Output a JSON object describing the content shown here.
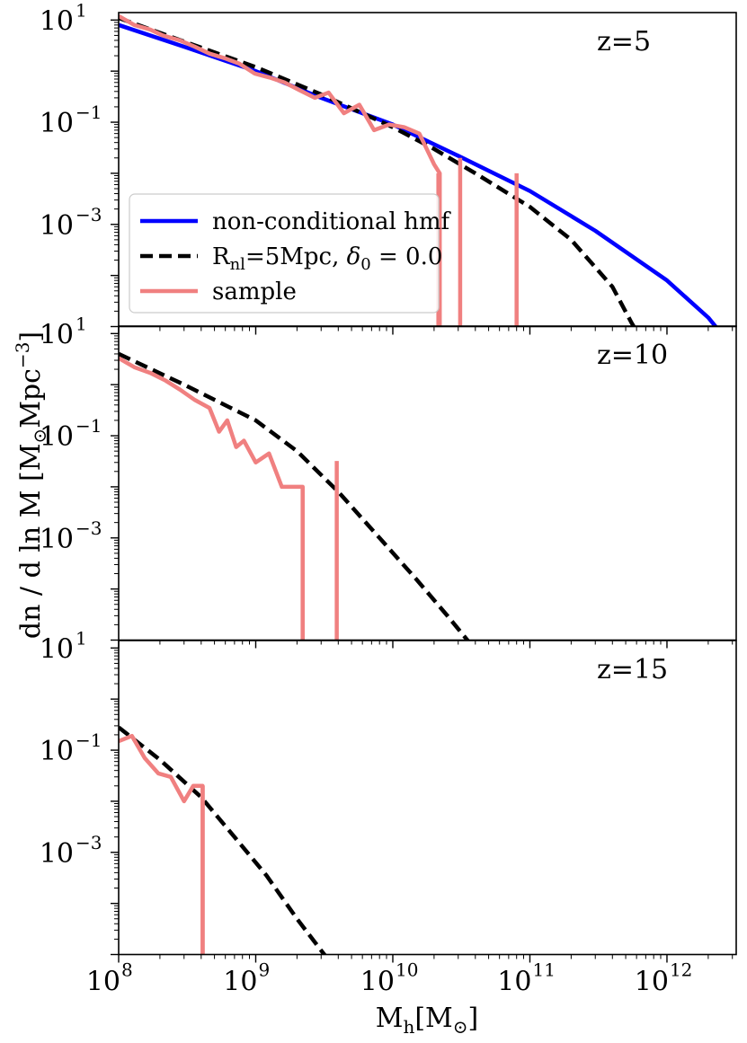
{
  "chart_data": {
    "type": "line",
    "shared_x_axis": {
      "label_main": "M",
      "label_sub": "h",
      "label_rest": "[M",
      "label_sun": "⊙",
      "label_close": "]",
      "scale": "log",
      "xlim": [
        100000000,
        3200000000000
      ],
      "major_ticks": [
        {
          "value": 100000000,
          "base": "10",
          "exp": "8"
        },
        {
          "value": 1000000000,
          "base": "10",
          "exp": "9"
        },
        {
          "value": 10000000000,
          "base": "10",
          "exp": "10"
        },
        {
          "value": 100000000000,
          "base": "10",
          "exp": "11"
        },
        {
          "value": 1000000000000,
          "base": "10",
          "exp": "12"
        }
      ]
    },
    "shared_y_axis": {
      "label": "dn / d ln M  [M",
      "label_sun": "⊙",
      "label_unit": "Mpc",
      "label_exp": "−3",
      "label_close": "]",
      "scale": "log",
      "ylim": [
        1e-05,
        14
      ],
      "major_ticks": [
        {
          "value": 10,
          "base": "10",
          "exp": "1"
        },
        {
          "value": 0.1,
          "base": "10",
          "exp": "−1"
        },
        {
          "value": 0.001,
          "base": "10",
          "exp": "−3"
        }
      ]
    },
    "legend": {
      "placement": "lower-left of top panel",
      "entries": [
        {
          "label": "non-conditional hmf",
          "series": "hmf",
          "color": "#0000ff",
          "dash": "solid"
        },
        {
          "label_pre": "R",
          "label_sub": "nl",
          "label_mid": "=5Mpc, ",
          "label_delta": "δ",
          "label_dsub": "0",
          "label_post": " = 0.0",
          "series": "conditional",
          "color": "#000000",
          "dash": "dashed"
        },
        {
          "label": "sample",
          "series": "sample",
          "color": "#f08080",
          "dash": "solid"
        }
      ]
    },
    "panels": [
      {
        "label": "z=5",
        "series": [
          {
            "id": "hmf",
            "color": "#0000ff",
            "x": [
              100000000.0,
              300000000.0,
              1000000000.0,
              3000000000.0,
              10000000000.0,
              30000000000.0,
              100000000000.0,
              300000000000.0,
              1000000000000.0,
              2000000000000.0,
              3000000000000.0
            ],
            "y": [
              8.0,
              3.0,
              1.0,
              0.3,
              0.09,
              0.022,
              0.0045,
              0.00075,
              8e-05,
              1.5e-05,
              4e-06
            ]
          },
          {
            "id": "conditional",
            "color": "#000000",
            "x": [
              100000000.0,
              300000000.0,
              1000000000.0,
              3000000000.0,
              10000000000.0,
              20000000000.0,
              40000000000.0,
              100000000000.0,
              200000000000.0,
              400000000000.0,
              550000000000.0,
              700000000000.0
            ],
            "y": [
              11.0,
              3.8,
              1.2,
              0.35,
              0.08,
              0.03,
              0.01,
              0.0022,
              0.0005,
              6e-05,
              1.2e-05,
              4e-06
            ]
          },
          {
            "id": "sample",
            "color": "#f08080",
            "x": [
              100000000.0,
              130000000.0,
              170000000.0,
              210000000.0,
              280000000.0,
              360000000.0,
              460000000.0,
              590000000.0,
              760000000.0,
              980000000.0,
              1260000000.0,
              1620000000.0,
              2100000000.0,
              2700000000.0,
              3400000000.0,
              4400000000.0,
              5700000000.0,
              7300000000.0,
              9400000000.0,
              12100000000.0,
              15600000000.0,
              20000000000.0,
              22000000000.0,
              22000000000.0
            ],
            "y": [
              12.0,
              8.0,
              6.5,
              5.0,
              4.0,
              3.0,
              2.2,
              1.8,
              1.4,
              0.9,
              0.75,
              0.6,
              0.42,
              0.3,
              0.38,
              0.15,
              0.22,
              0.07,
              0.09,
              0.08,
              0.06,
              0.015,
              0.01,
              1e-05
            ],
            "spikes": [
              {
                "x": 21500000000.0,
                "y": 0.01
              },
              {
                "x": 31000000000.0,
                "y": 0.02
              },
              {
                "x": 80000000000.0,
                "y": 0.01
              }
            ]
          }
        ]
      },
      {
        "label": "z=10",
        "series": [
          {
            "id": "conditional",
            "color": "#000000",
            "x": [
              100000000.0,
              300000000.0,
              1000000000.0,
              2000000000.0,
              4000000000.0,
              8000000000.0,
              15000000000.0,
              25000000000.0,
              35000000000.0
            ],
            "y": [
              4.0,
              1.0,
              0.2,
              0.05,
              0.008,
              0.001,
              0.00015,
              3e-05,
              1e-05
            ],
            "extend_x": 40000000000.0,
            "extend_y": 5e-06
          },
          {
            "id": "sample",
            "color": "#f08080",
            "x": [
              100000000.0,
              130000000.0,
              170000000.0,
              220000000.0,
              280000000.0,
              360000000.0,
              460000000.0,
              540000000.0,
              620000000.0,
              720000000.0,
              820000000.0,
              1000000000.0,
              1250000000.0,
              1550000000.0,
              2200000000.0,
              2200000000.0
            ],
            "y": [
              3.3,
              2.2,
              1.7,
              1.2,
              0.8,
              0.5,
              0.35,
              0.12,
              0.2,
              0.06,
              0.08,
              0.03,
              0.045,
              0.01,
              0.01,
              1e-05
            ],
            "spikes": [
              {
                "x": 2200000000.0,
                "y": 0.01
              },
              {
                "x": 3900000000.0,
                "y": 0.032
              }
            ]
          }
        ]
      },
      {
        "label": "z=15",
        "series": [
          {
            "id": "conditional",
            "color": "#000000",
            "x": [
              100000000.0,
              200000000.0,
              400000000.0,
              700000000.0,
              1200000000.0,
              2000000000.0,
              3000000000.0,
              4000000000.0
            ],
            "y": [
              0.28,
              0.065,
              0.012,
              0.002,
              0.00035,
              5e-05,
              1.2e-05,
              4.5e-06
            ]
          },
          {
            "id": "sample",
            "color": "#f08080",
            "x": [
              100000000.0,
              125000000.0,
              155000000.0,
              195000000.0,
              240000000.0,
              300000000.0,
              350000000.0,
              410000000.0,
              410000000.0
            ],
            "y": [
              0.15,
              0.19,
              0.07,
              0.035,
              0.03,
              0.01,
              0.02,
              0.02,
              1e-05
            ],
            "spikes": [
              {
                "x": 410000000.0,
                "y": 0.02
              }
            ]
          }
        ]
      }
    ]
  }
}
